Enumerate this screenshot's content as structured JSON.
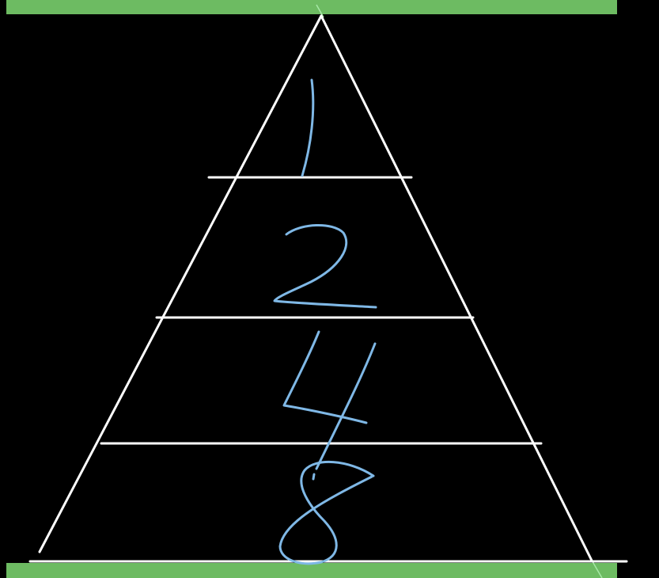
{
  "colors": {
    "background": "#000000",
    "bar": "#6dbb62",
    "lines": "#ffffff",
    "handwriting": "#7fb8e6",
    "pen_stroke": "#a6e8a6"
  },
  "pyramid": {
    "tiers": [
      {
        "level": 1,
        "label": "1"
      },
      {
        "level": 2,
        "label": "2"
      },
      {
        "level": 3,
        "label": "4"
      },
      {
        "level": 4,
        "label": "8"
      }
    ]
  }
}
